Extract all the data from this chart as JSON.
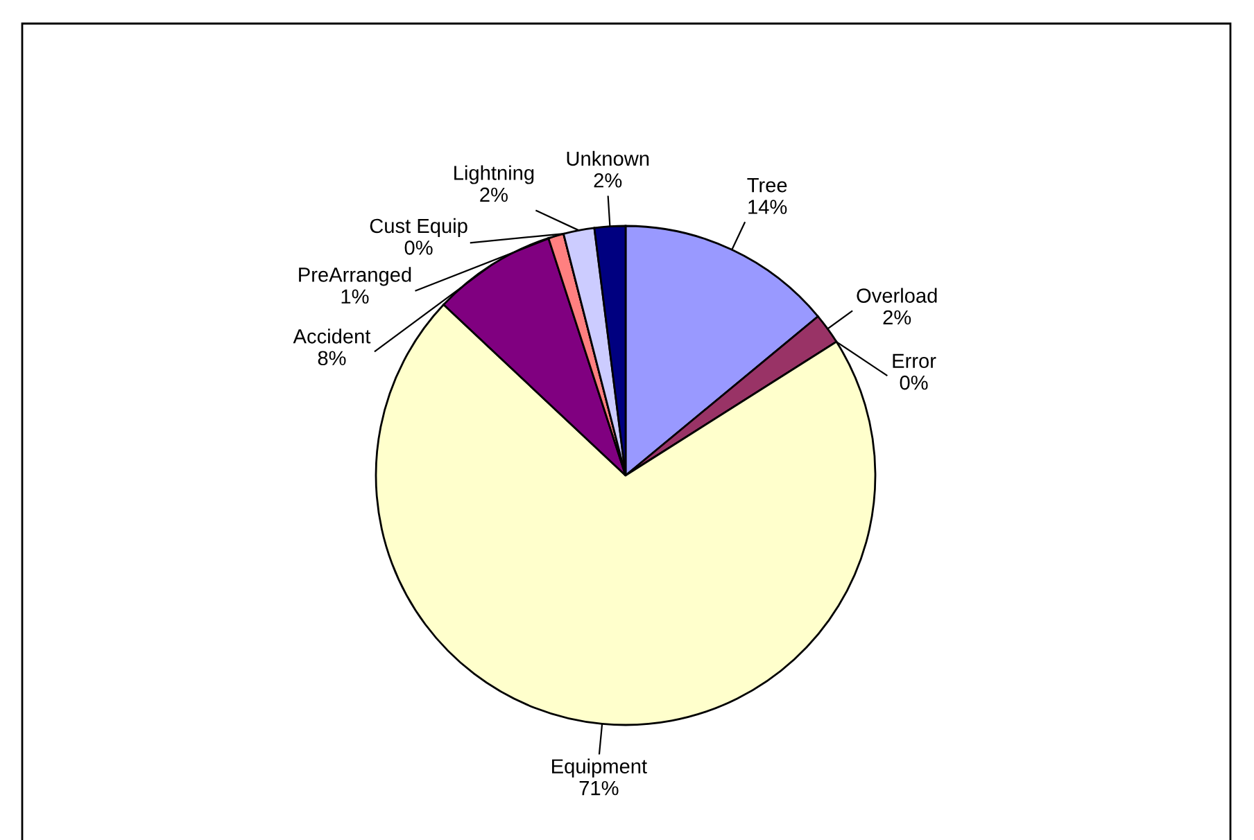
{
  "chart_data": {
    "type": "pie",
    "categories": [
      "Tree",
      "Overload",
      "Error",
      "Equipment",
      "Accident",
      "PreArranged",
      "Cust Equip",
      "Lightning",
      "Unknown"
    ],
    "values": [
      14,
      2,
      0,
      71,
      8,
      1,
      0,
      2,
      2
    ],
    "colors": [
      "#9999ff",
      "#993366",
      "#ccffff",
      "#ffffcc",
      "#800080",
      "#ff8080",
      "#0066cc",
      "#ccccff",
      "#000080"
    ],
    "value_labels": [
      "14%",
      "2%",
      "0%",
      "71%",
      "8%",
      "1%",
      "0%",
      "2%",
      "2%"
    ]
  }
}
